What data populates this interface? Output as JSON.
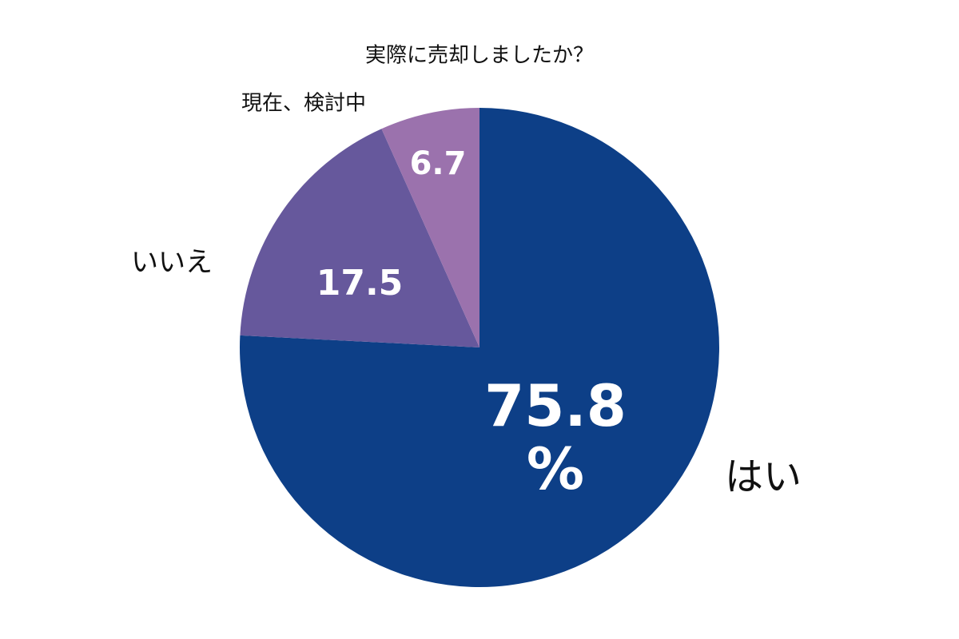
{
  "chart_data": {
    "type": "pie",
    "title": "実際に売却しましたか？",
    "categories": [
      "はい",
      "いいえ",
      "現在、検討中"
    ],
    "values": [
      75.8,
      17.5,
      6.7
    ],
    "value_labels": [
      "75.8\n%",
      "17.5",
      "6.7"
    ],
    "colors": [
      "#0d3f87",
      "#66589c",
      "#9b72ad"
    ]
  }
}
